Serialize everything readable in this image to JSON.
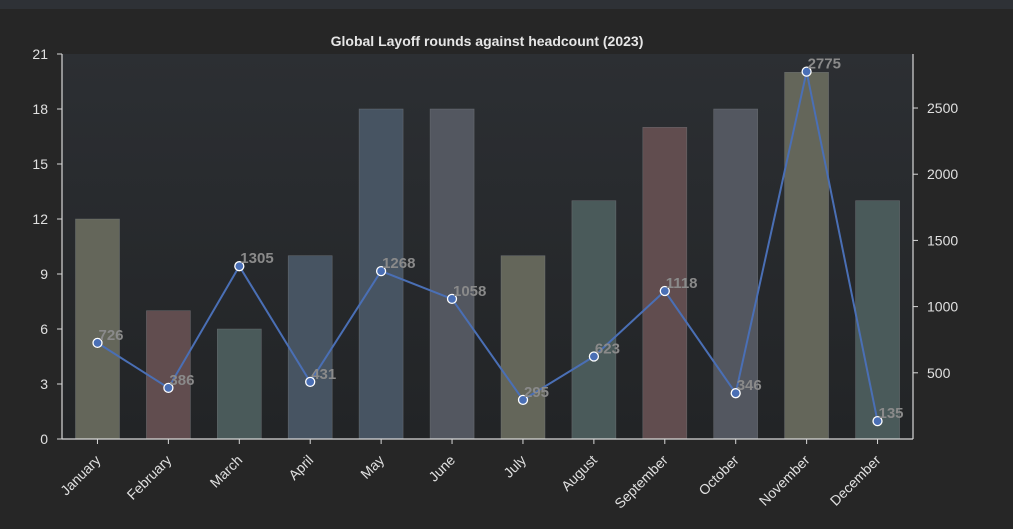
{
  "chart_data": {
    "type": "bar+line",
    "title": "Global Layoff rounds against headcount (2023)",
    "xlabel": "",
    "ylabel_left": "",
    "ylabel_right": "",
    "categories": [
      "January",
      "February",
      "March",
      "April",
      "May",
      "June",
      "July",
      "August",
      "September",
      "October",
      "November",
      "December"
    ],
    "bar_series": {
      "name": "Layoff rounds",
      "axis": "left",
      "values": [
        12,
        7,
        6,
        10,
        18,
        18,
        10,
        13,
        17,
        18,
        20,
        13
      ],
      "colors": [
        "#64665a",
        "#614d4f",
        "#4a5a5a",
        "#475462",
        "#475462",
        "#535760",
        "#64665a",
        "#4a5a5a",
        "#614d4f",
        "#535760",
        "#64665a",
        "#4a5a5a"
      ]
    },
    "line_series": {
      "name": "Headcount",
      "axis": "right",
      "values": [
        726,
        386,
        1305,
        431,
        1268,
        1058,
        295,
        623,
        1118,
        346,
        2775,
        135
      ],
      "labels": [
        "726",
        "386",
        "1305",
        "431",
        "1268",
        "1058",
        "295",
        "623",
        "1118",
        "346",
        "2775",
        "135"
      ],
      "color": "#4a6fb5"
    },
    "left_axis": {
      "ylim": [
        0,
        21
      ],
      "ticks": [
        0,
        3,
        6,
        9,
        12,
        15,
        18,
        21
      ],
      "tick_labels": [
        "0",
        "3",
        "6",
        "9",
        "12",
        "15",
        "18",
        "21"
      ]
    },
    "right_axis": {
      "ylim": [
        0,
        2908
      ],
      "ticks": [
        500,
        1000,
        1500,
        2000,
        2500
      ],
      "tick_labels": [
        "500",
        "1000",
        "1500",
        "2000",
        "2500"
      ]
    },
    "grid": false,
    "legend": "none"
  },
  "colors": {
    "background": "#262626",
    "plot_background": "#2c2f33",
    "axis": "#d8d8d8",
    "line": "#4a6fb5",
    "marker_edge": "#ffffff"
  }
}
